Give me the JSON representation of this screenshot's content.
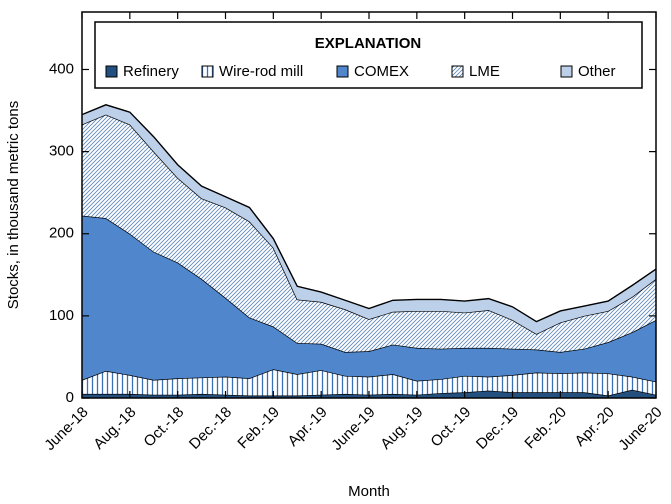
{
  "chart_data": {
    "type": "stacked_area",
    "legend_title": "EXPLANATION",
    "x_label": "Month",
    "y_label": "Stocks, in thousand metric tons",
    "categories": [
      "June-18",
      null,
      "Aug.-18",
      null,
      "Oct.-18",
      null,
      "Dec.-18",
      null,
      "Feb.-19",
      null,
      "Apr.-19",
      null,
      "June-19",
      null,
      "Aug.-19",
      null,
      "Oct.-19",
      null,
      "Dec.-19",
      null,
      "Feb.-20",
      null,
      "Apr.-20",
      null,
      "June-20"
    ],
    "ylim": [
      0,
      470
    ],
    "yticks": [
      0,
      100,
      200,
      300,
      400
    ],
    "series": [
      {
        "name": "Refinery",
        "color": "#24507f",
        "hatch": "none",
        "values": [
          5,
          5,
          5,
          4,
          4,
          5,
          4,
          3,
          3,
          3,
          4,
          5,
          4,
          5,
          4,
          6,
          7,
          9,
          7,
          7,
          7,
          7,
          3,
          10,
          4
        ]
      },
      {
        "name": "Wire-rod mill",
        "color": "#3b6fb6",
        "hatch": "vertical",
        "values": [
          17,
          28,
          23,
          18,
          20,
          20,
          22,
          21,
          32,
          26,
          30,
          22,
          22,
          24,
          17,
          17,
          20,
          17,
          21,
          24,
          23,
          24,
          27,
          16,
          16
        ]
      },
      {
        "name": "COMEX",
        "color": "#4f86cc",
        "hatch": "none",
        "values": [
          200,
          186,
          172,
          156,
          141,
          120,
          96,
          74,
          52,
          38,
          32,
          29,
          31,
          36,
          40,
          37,
          34,
          35,
          32,
          28,
          26,
          29,
          38,
          54,
          75
        ]
      },
      {
        "name": "LME",
        "color": "#5b86bd",
        "hatch": "diagonal",
        "values": [
          111,
          126,
          133,
          122,
          103,
          98,
          110,
          117,
          96,
          53,
          51,
          52,
          39,
          40,
          45,
          46,
          43,
          46,
          35,
          19,
          36,
          40,
          38,
          43,
          50
        ]
      },
      {
        "name": "Other",
        "color": "#bdd0ea",
        "hatch": "none",
        "values": [
          12,
          12,
          15,
          18,
          16,
          15,
          13,
          17,
          11,
          16,
          12,
          11,
          13,
          14,
          14,
          14,
          14,
          14,
          16,
          15,
          14,
          12,
          12,
          14,
          12
        ]
      }
    ]
  }
}
